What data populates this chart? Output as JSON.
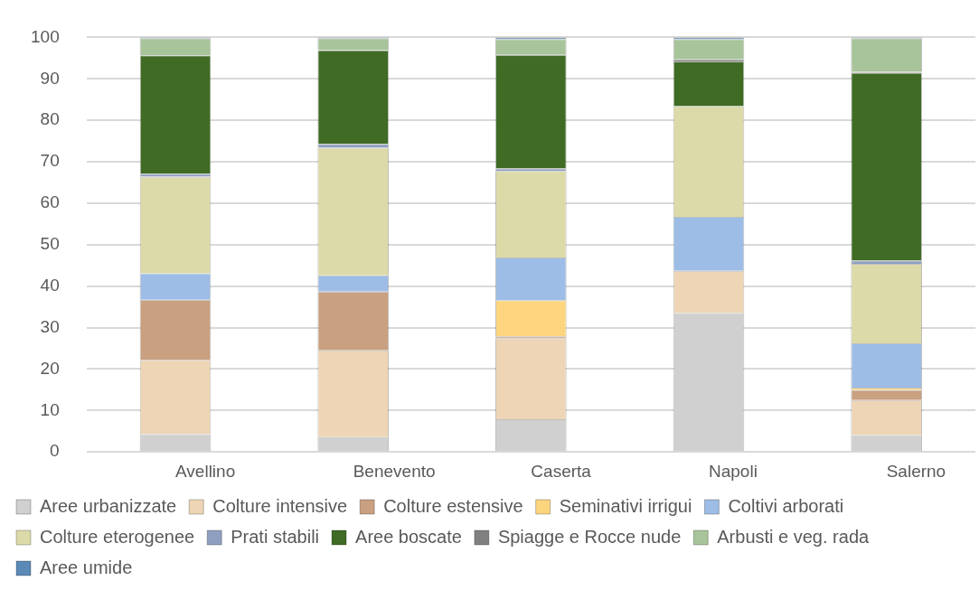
{
  "chart_data": {
    "type": "bar",
    "stacked": true,
    "categories": [
      "Avellino",
      "Benevento",
      "Caserta",
      "Napoli",
      "Salerno"
    ],
    "series": [
      {
        "name": "Aree urbanizzate",
        "color": "#d0d0d0",
        "values": [
          4.3,
          3.6,
          7.9,
          33.5,
          4.1
        ]
      },
      {
        "name": "Colture intensive",
        "color": "#edd5b5",
        "values": [
          17.9,
          20.9,
          19.5,
          10.2,
          8.4
        ]
      },
      {
        "name": "Colture estensive",
        "color": "#c9a080",
        "values": [
          14.5,
          14.2,
          0.5,
          0,
          2.5
        ]
      },
      {
        "name": "Seminativi irrigui",
        "color": "#fdd57e",
        "values": [
          0,
          0,
          8.7,
          0,
          0.5
        ]
      },
      {
        "name": "Coltivi arborati",
        "color": "#9dbde6",
        "values": [
          6.4,
          3.9,
          10.3,
          13.0,
          10.7
        ]
      },
      {
        "name": "Colture eterogenee",
        "color": "#dcdaa8",
        "values": [
          23.3,
          30.8,
          20.9,
          26.7,
          19.2
        ]
      },
      {
        "name": "Prati stabili",
        "color": "#8f9fc0",
        "values": [
          0.7,
          0.9,
          0.6,
          0,
          0.8
        ]
      },
      {
        "name": "Aree boscate",
        "color": "#3f6b24",
        "values": [
          28.6,
          22.6,
          27.4,
          10.8,
          45.3
        ]
      },
      {
        "name": "Spiagge e Rocce nude",
        "color": "#808080",
        "values": [
          0,
          0,
          0,
          0.5,
          0.2
        ]
      },
      {
        "name": "Arbusti e veg. rada",
        "color": "#a8c49a",
        "values": [
          4.1,
          2.9,
          3.8,
          4.9,
          8.1
        ]
      },
      {
        "name": "Aree umide",
        "color": "#5b8ab8",
        "values": [
          0.2,
          0.2,
          0.4,
          0.4,
          0.2
        ]
      }
    ],
    "ylim": [
      0,
      100
    ],
    "yticks": [
      0,
      10,
      20,
      30,
      40,
      50,
      60,
      70,
      80,
      90,
      100
    ],
    "grid": "y",
    "legend": "bottom"
  }
}
